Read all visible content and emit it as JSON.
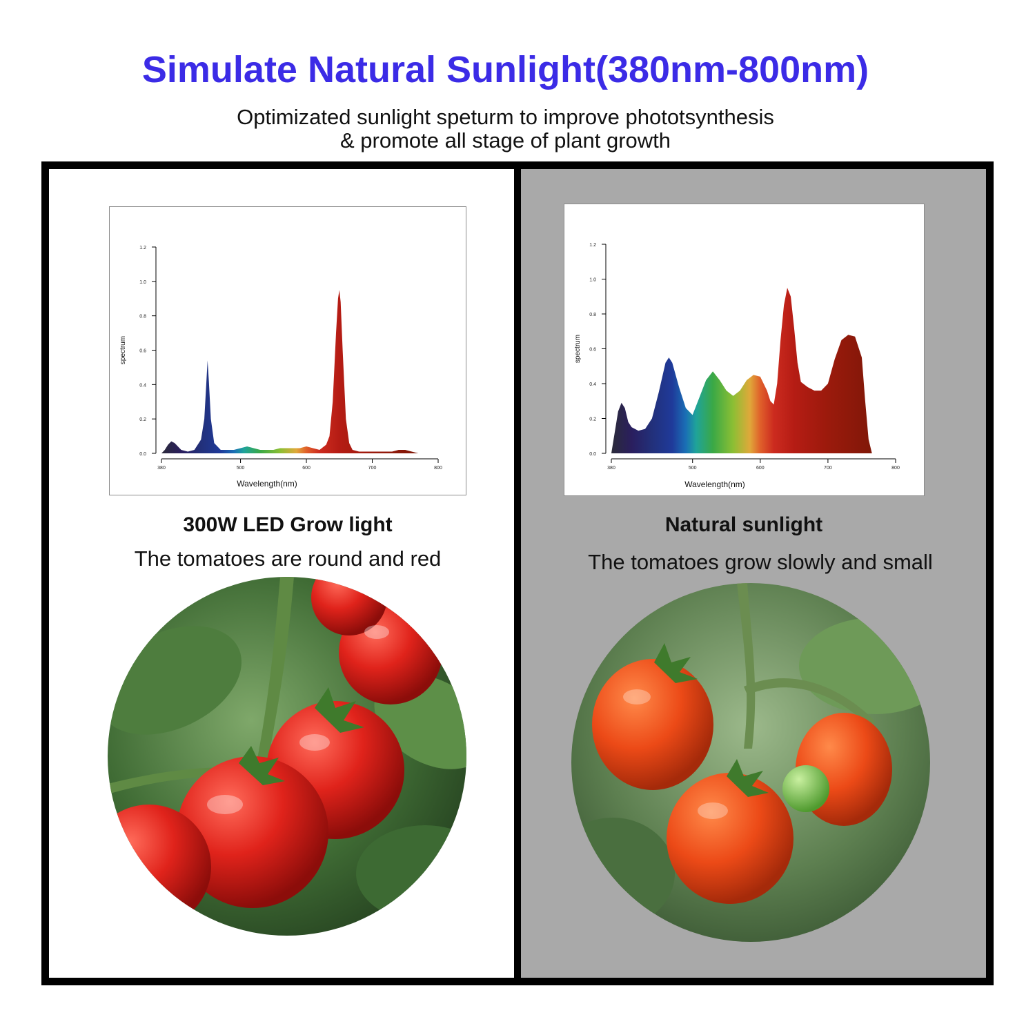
{
  "header": {
    "title": "Simulate Natural Sunlight(380nm-800nm)",
    "subtitle_line1": "Optimizated sunlight speturm to improve phototsynthesis",
    "subtitle_line2": "& promote all stage of plant growth"
  },
  "panels": [
    {
      "heading": "300W LED Grow light",
      "description": "The tomatoes are round and red",
      "photo_icon": "ripe-red-tomatoes-photo"
    },
    {
      "heading": "Natural sunlight",
      "description": "The tomatoes grow slowly and small",
      "photo_icon": "small-orange-tomatoes-photo"
    }
  ],
  "colors": {
    "title": "#3b2be6",
    "right_panel_bg": "#a9a9a9",
    "frame": "#000000"
  },
  "chart_data": [
    {
      "type": "area",
      "xlabel": "Wavelength(nm)",
      "ylabel": "spectrum",
      "xlim": [
        380,
        800
      ],
      "ylim": [
        0,
        1.2
      ],
      "x_ticks": [
        380,
        500,
        600,
        700,
        800
      ],
      "y_ticks": [
        "0.0",
        "0.2",
        "0.4",
        "0.6",
        "0.8",
        "1.0",
        "1.2"
      ],
      "grid": false,
      "fill": "spectral-gradient",
      "x": [
        380,
        385,
        390,
        395,
        400,
        410,
        420,
        430,
        440,
        445,
        448,
        450,
        452,
        455,
        460,
        470,
        480,
        490,
        500,
        510,
        520,
        530,
        540,
        550,
        560,
        570,
        580,
        590,
        600,
        610,
        620,
        630,
        635,
        640,
        645,
        648,
        650,
        652,
        655,
        660,
        665,
        670,
        680,
        690,
        700,
        710,
        720,
        730,
        740,
        750,
        760,
        770
      ],
      "values": [
        0.0,
        0.02,
        0.05,
        0.07,
        0.06,
        0.02,
        0.01,
        0.02,
        0.08,
        0.2,
        0.4,
        0.54,
        0.42,
        0.2,
        0.06,
        0.02,
        0.02,
        0.02,
        0.03,
        0.04,
        0.03,
        0.02,
        0.02,
        0.02,
        0.03,
        0.03,
        0.03,
        0.03,
        0.04,
        0.03,
        0.02,
        0.05,
        0.1,
        0.3,
        0.7,
        0.9,
        0.95,
        0.88,
        0.6,
        0.2,
        0.06,
        0.02,
        0.01,
        0.01,
        0.01,
        0.01,
        0.01,
        0.01,
        0.02,
        0.02,
        0.01,
        0.0
      ]
    },
    {
      "type": "area",
      "xlabel": "Wavelength(nm)",
      "ylabel": "spectrum",
      "xlim": [
        380,
        800
      ],
      "ylim": [
        0,
        1.2
      ],
      "x_ticks": [
        380,
        500,
        600,
        700,
        800
      ],
      "y_ticks": [
        "0.0",
        "0.2",
        "0.4",
        "0.6",
        "0.8",
        "1.0",
        "1.2"
      ],
      "grid": false,
      "fill": "spectral-gradient",
      "x": [
        380,
        385,
        390,
        395,
        400,
        405,
        410,
        420,
        430,
        440,
        450,
        460,
        465,
        470,
        480,
        490,
        500,
        510,
        520,
        530,
        540,
        550,
        560,
        570,
        580,
        590,
        600,
        610,
        615,
        620,
        625,
        630,
        635,
        640,
        645,
        650,
        655,
        660,
        670,
        680,
        690,
        700,
        710,
        720,
        730,
        740,
        750,
        755,
        760,
        765
      ],
      "values": [
        0.0,
        0.12,
        0.24,
        0.29,
        0.26,
        0.18,
        0.15,
        0.13,
        0.14,
        0.2,
        0.35,
        0.52,
        0.55,
        0.52,
        0.38,
        0.26,
        0.22,
        0.32,
        0.42,
        0.47,
        0.42,
        0.36,
        0.33,
        0.36,
        0.42,
        0.45,
        0.44,
        0.36,
        0.3,
        0.28,
        0.4,
        0.65,
        0.85,
        0.95,
        0.9,
        0.72,
        0.52,
        0.41,
        0.38,
        0.36,
        0.36,
        0.4,
        0.54,
        0.65,
        0.68,
        0.67,
        0.55,
        0.3,
        0.08,
        0.0
      ]
    }
  ]
}
